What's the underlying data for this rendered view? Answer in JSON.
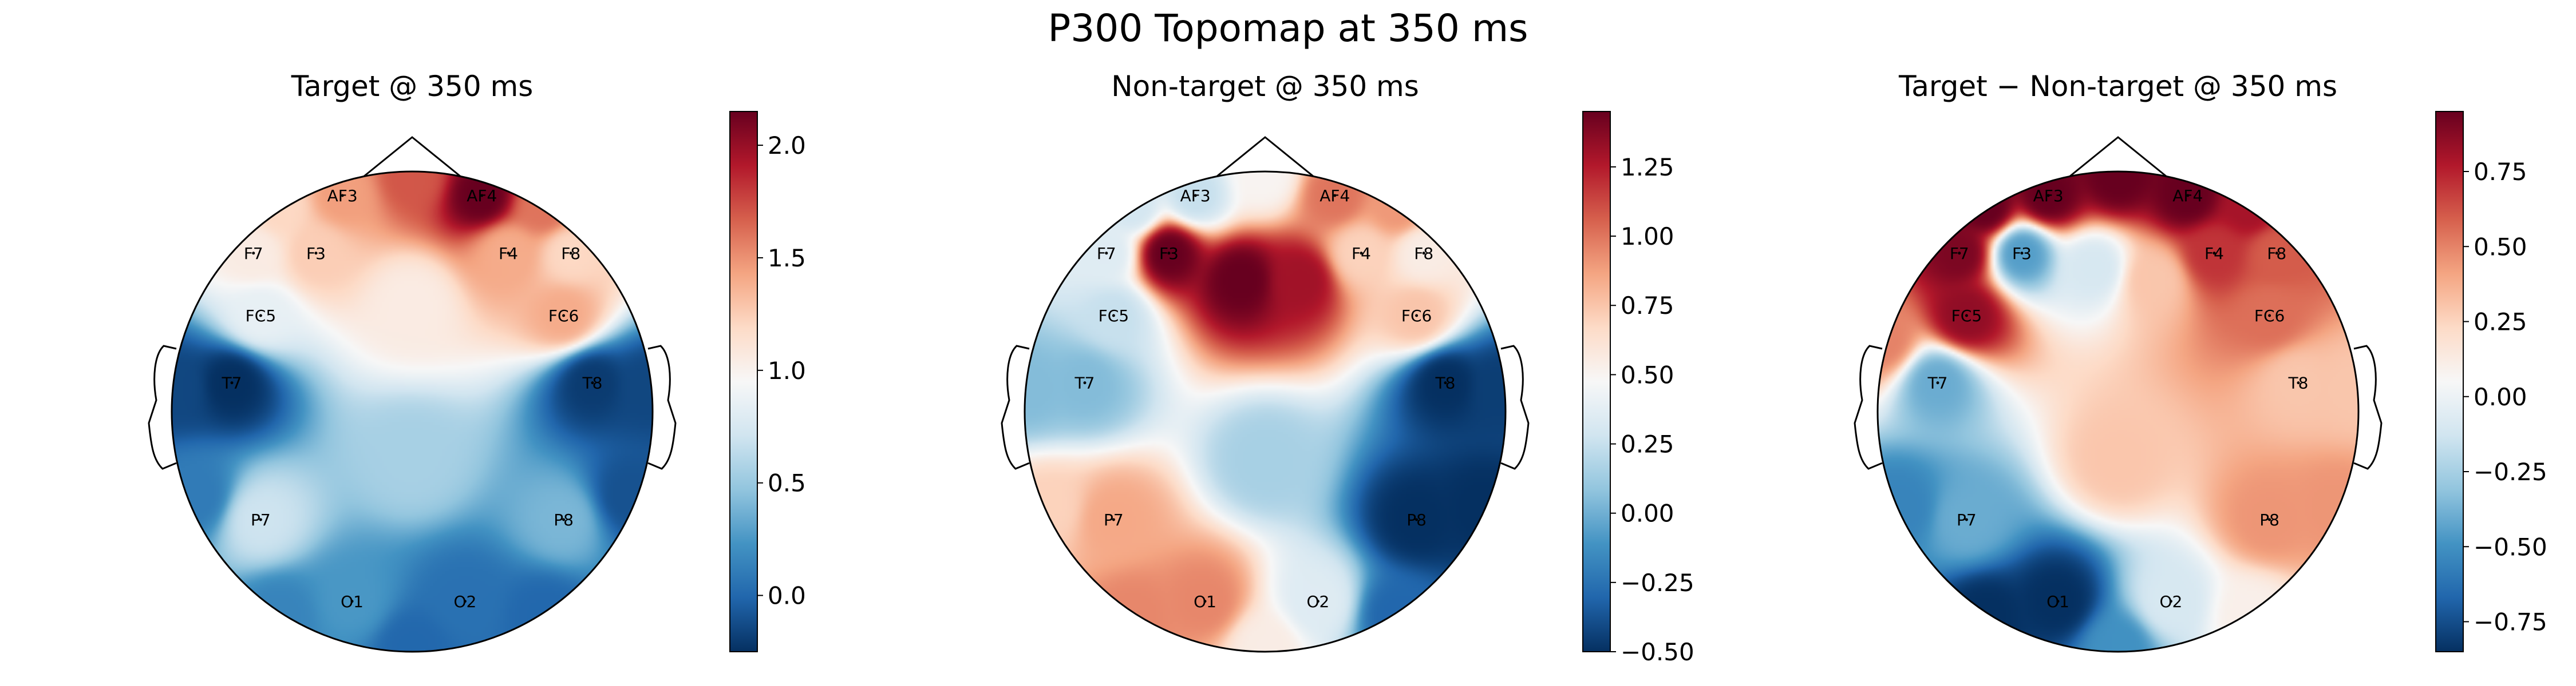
{
  "figure": {
    "title": "P300 Topomap at 350 ms"
  },
  "chart_data": [
    {
      "type": "heatmap",
      "title": "Target @ 350 ms",
      "colormap": "RdBu_r",
      "vlim": [
        -0.25,
        2.15
      ],
      "colorbar_ticks": [
        {
          "value": 0.0,
          "label": "0.0"
        },
        {
          "value": 0.5,
          "label": "0.5"
        },
        {
          "value": 1.0,
          "label": "1.0"
        },
        {
          "value": 1.5,
          "label": "1.5"
        },
        {
          "value": 2.0,
          "label": "2.0"
        }
      ],
      "channels": [
        {
          "name": "AF3",
          "value": 1.45
        },
        {
          "name": "AF4",
          "value": 2.15
        },
        {
          "name": "F7",
          "value": 1.05
        },
        {
          "name": "F3",
          "value": 1.25
        },
        {
          "name": "F4",
          "value": 1.4
        },
        {
          "name": "F8",
          "value": 1.2
        },
        {
          "name": "FC5",
          "value": 0.85
        },
        {
          "name": "FC6",
          "value": 1.4
        },
        {
          "name": "T7",
          "value": -0.25
        },
        {
          "name": "T8",
          "value": -0.2
        },
        {
          "name": "P7",
          "value": 0.7
        },
        {
          "name": "P8",
          "value": 0.4
        },
        {
          "name": "O1",
          "value": 0.25
        },
        {
          "name": "O2",
          "value": 0.05
        }
      ]
    },
    {
      "type": "heatmap",
      "title": "Non-target @ 350 ms",
      "colormap": "RdBu_r",
      "vlim": [
        -0.5,
        1.45
      ],
      "colorbar_ticks": [
        {
          "value": -0.5,
          "label": "−0.50"
        },
        {
          "value": -0.25,
          "label": "−0.25"
        },
        {
          "value": 0.0,
          "label": "0.00"
        },
        {
          "value": 0.25,
          "label": "0.25"
        },
        {
          "value": 0.5,
          "label": "0.50"
        },
        {
          "value": 0.75,
          "label": "0.75"
        },
        {
          "value": 1.0,
          "label": "1.00"
        },
        {
          "value": 1.25,
          "label": "1.25"
        }
      ],
      "channels": [
        {
          "name": "AF3",
          "value": 0.25
        },
        {
          "name": "AF4",
          "value": 1.0
        },
        {
          "name": "F7",
          "value": 0.35
        },
        {
          "name": "F3",
          "value": 1.45
        },
        {
          "name": "F4",
          "value": 0.7
        },
        {
          "name": "F8",
          "value": 0.55
        },
        {
          "name": "FC5",
          "value": 0.25
        },
        {
          "name": "FC6",
          "value": 0.75
        },
        {
          "name": "T7",
          "value": 0.05
        },
        {
          "name": "T8",
          "value": -0.5
        },
        {
          "name": "P7",
          "value": 0.85
        },
        {
          "name": "P8",
          "value": -0.5
        },
        {
          "name": "O1",
          "value": 0.95
        },
        {
          "name": "O2",
          "value": 0.35
        }
      ]
    },
    {
      "type": "heatmap",
      "title": "Target − Non-target @ 350 ms",
      "colormap": "RdBu_r",
      "vlim": [
        -0.85,
        0.95
      ],
      "colorbar_ticks": [
        {
          "value": -0.75,
          "label": "−0.75"
        },
        {
          "value": -0.5,
          "label": "−0.50"
        },
        {
          "value": -0.25,
          "label": "−0.25"
        },
        {
          "value": 0.0,
          "label": "0.00"
        },
        {
          "value": 0.25,
          "label": "0.25"
        },
        {
          "value": 0.5,
          "label": "0.50"
        },
        {
          "value": 0.75,
          "label": "0.75"
        }
      ],
      "channels": [
        {
          "name": "AF3",
          "value": 0.95
        },
        {
          "name": "AF4",
          "value": 0.95
        },
        {
          "name": "F7",
          "value": 0.9
        },
        {
          "name": "F3",
          "value": -0.45
        },
        {
          "name": "F4",
          "value": 0.7
        },
        {
          "name": "F8",
          "value": 0.6
        },
        {
          "name": "FC5",
          "value": 0.85
        },
        {
          "name": "FC6",
          "value": 0.55
        },
        {
          "name": "T7",
          "value": -0.4
        },
        {
          "name": "T8",
          "value": 0.3
        },
        {
          "name": "P7",
          "value": -0.4
        },
        {
          "name": "P8",
          "value": 0.45
        },
        {
          "name": "O1",
          "value": -0.85
        },
        {
          "name": "O2",
          "value": -0.1
        }
      ]
    }
  ]
}
